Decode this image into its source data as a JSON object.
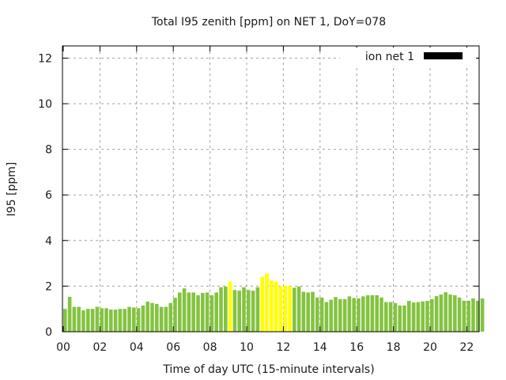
{
  "chart_data": {
    "type": "bar",
    "title": "Total I95 zenith [ppm] on NET 1, DoY=078",
    "xlabel": "Time of day UTC (15-minute intervals)",
    "ylabel": "I95 [ppm]",
    "ylim": [
      0,
      12.5
    ],
    "yticks": [
      "0",
      "2",
      "4",
      "6",
      "8",
      "10",
      "12"
    ],
    "ytick_values": [
      0,
      2,
      4,
      6,
      8,
      10,
      12
    ],
    "xticks": [
      "00",
      "02",
      "04",
      "06",
      "08",
      "10",
      "12",
      "14",
      "16",
      "18",
      "20",
      "22"
    ],
    "xtick_hours": [
      0,
      2,
      4,
      6,
      8,
      10,
      12,
      14,
      16,
      18,
      20,
      22
    ],
    "xlim_hours": [
      0,
      22.75
    ],
    "grid": true,
    "legend": {
      "label": "ion net 1",
      "position": "top-right",
      "color": "#000000"
    },
    "colors": {
      "normal": "#84c341",
      "highlight": "#ffff00"
    },
    "interval_hours": 0.25,
    "values": [
      1.0,
      1.53,
      1.09,
      1.09,
      0.94,
      1.0,
      1.0,
      1.09,
      1.03,
      1.03,
      0.97,
      0.97,
      1.0,
      1.0,
      1.09,
      1.06,
      1.03,
      1.15,
      1.32,
      1.26,
      1.22,
      1.09,
      1.09,
      1.26,
      1.49,
      1.72,
      1.9,
      1.72,
      1.72,
      1.6,
      1.7,
      1.72,
      1.6,
      1.72,
      1.95,
      1.98,
      2.2,
      1.83,
      1.8,
      1.95,
      1.83,
      1.8,
      1.95,
      2.4,
      2.56,
      2.25,
      2.2,
      2.0,
      2.03,
      2.0,
      1.93,
      1.98,
      1.75,
      1.72,
      1.75,
      1.5,
      1.5,
      1.3,
      1.4,
      1.52,
      1.43,
      1.43,
      1.55,
      1.48,
      1.46,
      1.55,
      1.6,
      1.6,
      1.6,
      1.5,
      1.3,
      1.3,
      1.26,
      1.15,
      1.15,
      1.35,
      1.28,
      1.3,
      1.33,
      1.35,
      1.43,
      1.56,
      1.63,
      1.73,
      1.63,
      1.6,
      1.5,
      1.36,
      1.36,
      1.46,
      1.36,
      1.46
    ],
    "highlighted_indices": [
      36,
      43,
      44,
      45,
      46,
      47,
      48,
      49
    ]
  }
}
